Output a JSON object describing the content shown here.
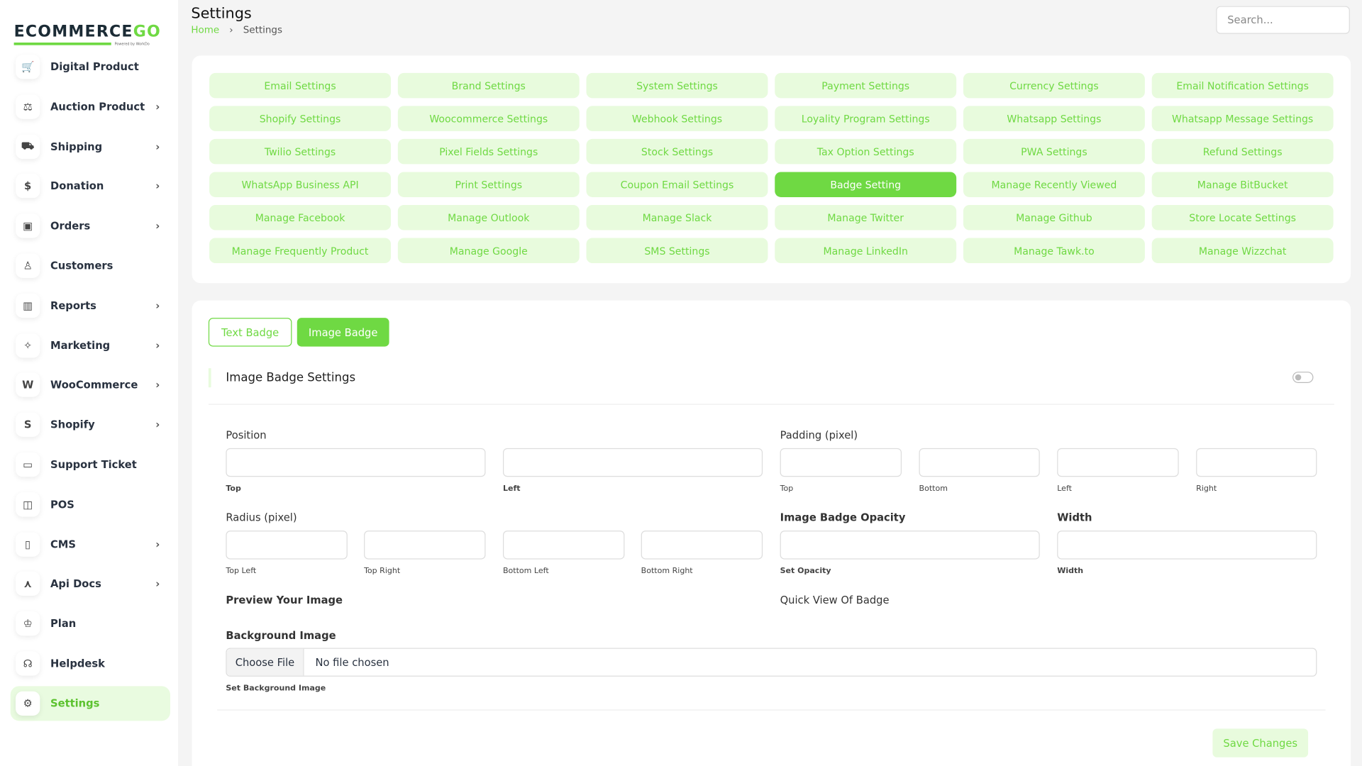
{
  "brand": {
    "name_a": "ECOMMERCE",
    "name_b": "GO",
    "powered": "Powered by WorkDo"
  },
  "header": {
    "title": "Settings",
    "breadcrumb": [
      "Home",
      "Settings"
    ],
    "search_placeholder": "Search..."
  },
  "sidebar": {
    "items": [
      {
        "label": "Digital Product",
        "icon": "cart-plus-icon",
        "glyph": "🛒",
        "chev": false
      },
      {
        "label": "Auction Product",
        "icon": "gavel-icon",
        "glyph": "⚖",
        "chev": true
      },
      {
        "label": "Shipping",
        "icon": "truck-icon",
        "glyph": "⛟",
        "chev": true
      },
      {
        "label": "Donation",
        "icon": "coin-icon",
        "glyph": "$",
        "chev": true
      },
      {
        "label": "Orders",
        "icon": "briefcase-icon",
        "glyph": "▣",
        "chev": true
      },
      {
        "label": "Customers",
        "icon": "user-icon",
        "glyph": "♙",
        "chev": false
      },
      {
        "label": "Reports",
        "icon": "chart-icon",
        "glyph": "▥",
        "chev": true
      },
      {
        "label": "Marketing",
        "icon": "sparkle-icon",
        "glyph": "✧",
        "chev": true
      },
      {
        "label": "WooCommerce",
        "icon": "woocommerce-icon",
        "glyph": "W",
        "chev": true
      },
      {
        "label": "Shopify",
        "icon": "shopify-icon",
        "glyph": "S",
        "chev": true
      },
      {
        "label": "Support Ticket",
        "icon": "ticket-icon",
        "glyph": "▭",
        "chev": false
      },
      {
        "label": "POS",
        "icon": "pos-icon",
        "glyph": "◫",
        "chev": false
      },
      {
        "label": "CMS",
        "icon": "layout-icon",
        "glyph": "▯",
        "chev": true
      },
      {
        "label": "Api Docs",
        "icon": "api-icon",
        "glyph": "⋏",
        "chev": true
      },
      {
        "label": "Plan",
        "icon": "trophy-icon",
        "glyph": "♔",
        "chev": false
      },
      {
        "label": "Helpdesk",
        "icon": "headset-icon",
        "glyph": "☊",
        "chev": false
      },
      {
        "label": "Settings",
        "icon": "gear-icon",
        "glyph": "⚙",
        "chev": false,
        "active": true
      }
    ]
  },
  "settings_menu": [
    "Email Settings",
    "Brand Settings",
    "System Settings",
    "Payment Settings",
    "Currency Settings",
    "Email Notification Settings",
    "Shopify Settings",
    "Woocommerce Settings",
    "Webhook Settings",
    "Loyality Program Settings",
    "Whatsapp Settings",
    "Whatsapp Message Settings",
    "Twilio Settings",
    "Pixel Fields Settings",
    "Stock Settings",
    "Tax Option Settings",
    "PWA Settings",
    "Refund Settings",
    "WhatsApp Business API",
    "Print Settings",
    "Coupon Email Settings",
    "Badge Setting",
    "Manage Recently Viewed",
    "Manage BitBucket",
    "Manage Facebook",
    "Manage Outlook",
    "Manage Slack",
    "Manage Twitter",
    "Manage Github",
    "Store Locate Settings",
    "Manage Frequently Product",
    "Manage Google",
    "SMS Settings",
    "Manage LinkedIn",
    "Manage Tawk.to",
    "Manage Wizzchat"
  ],
  "settings_active": "Badge Setting",
  "accent": "#6fd943",
  "badge": {
    "tabs": {
      "text": "Text Badge",
      "image": "Image Badge"
    },
    "section_title": "Image Badge Settings",
    "enabled": false,
    "position_label": "Position",
    "pos_top": "Top",
    "pos_left": "Left",
    "padding_label": "Padding (pixel)",
    "pad_top": "Top",
    "pad_bottom": "Bottom",
    "pad_left": "Left",
    "pad_right": "Right",
    "radius_label": "Radius (pixel)",
    "r_tl": "Top Left",
    "r_tr": "Top Right",
    "r_bl": "Bottom Left",
    "r_br": "Bottom Right",
    "opacity_label": "Image Badge Opacity",
    "opacity_sub": "Set Opacity",
    "width_label": "Width",
    "width_sub": "Width",
    "preview_label": "Preview Your Image",
    "quick_view_label": "Quick View Of Badge",
    "bg_label": "Background Image",
    "choose": "Choose File",
    "no_file": "No file chosen",
    "bg_sub": "Set Background Image",
    "save": "Save Changes"
  }
}
